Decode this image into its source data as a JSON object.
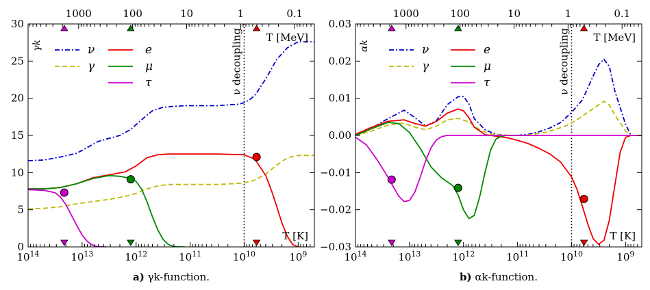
{
  "chart_data": [
    {
      "type": "line",
      "panel_label": "a)",
      "caption": "γk-function.",
      "inside_label": "γk",
      "xlabel": "T [K]",
      "x2label": "T [MeV]",
      "x_scale": "log_reversed",
      "xlim_log10_K": [
        14,
        8.7
      ],
      "x_ticks": [
        {
          "log": 14,
          "label": "10^14"
        },
        {
          "log": 13,
          "label": "10^13"
        },
        {
          "log": 12,
          "label": "10^12"
        },
        {
          "log": 11,
          "label": "10^11"
        },
        {
          "log": 10,
          "label": "10^10"
        },
        {
          "log": 9,
          "label": "10^9"
        }
      ],
      "x2_ticks": [
        {
          "log": 13.0645,
          "label": "1000"
        },
        {
          "log": 12.0645,
          "label": "100"
        },
        {
          "log": 11.0645,
          "label": "10"
        },
        {
          "log": 10.0645,
          "label": "1"
        },
        {
          "log": 9.0645,
          "label": "0.1"
        }
      ],
      "ylim": [
        0,
        30
      ],
      "y_ticks": [
        "0",
        "5",
        "10",
        "15",
        "20",
        "25",
        "30"
      ],
      "y_tick_values": [
        0,
        5,
        10,
        15,
        20,
        25,
        30
      ],
      "decoupling": {
        "log": 10.0,
        "label": "ν decoupling"
      },
      "series": [
        {
          "name": "ν",
          "color": "#0000cc",
          "dash": "dashdot",
          "x_log": [
            14,
            13.7,
            13.4,
            13.1,
            12.9,
            12.7,
            12.5,
            12.3,
            12.1,
            11.9,
            11.7,
            11.5,
            11.3,
            11.1,
            10.9,
            10.7,
            10.5,
            10.3,
            10.1,
            10.0,
            9.9,
            9.8,
            9.6,
            9.4,
            9.2,
            9.0,
            8.7
          ],
          "y": [
            11.6,
            11.7,
            12.1,
            12.6,
            13.4,
            14.2,
            14.6,
            15.0,
            15.8,
            17.1,
            18.3,
            18.8,
            18.9,
            19.0,
            19.0,
            19.0,
            19.0,
            19.1,
            19.2,
            19.4,
            19.8,
            20.4,
            22.6,
            25.2,
            26.8,
            27.6,
            27.6
          ]
        },
        {
          "name": "γ",
          "color": "#bbbb00",
          "dash": "dashed",
          "x_log": [
            14,
            13.7,
            13.4,
            13.1,
            12.8,
            12.5,
            12.2,
            12.0,
            11.8,
            11.6,
            11.4,
            11.2,
            11.0,
            10.8,
            10.5,
            10.2,
            10.0,
            9.8,
            9.6,
            9.4,
            9.2,
            9.0,
            8.7
          ],
          "y": [
            5.1,
            5.2,
            5.4,
            5.8,
            6.1,
            6.4,
            6.8,
            7.2,
            7.8,
            8.2,
            8.4,
            8.4,
            8.4,
            8.4,
            8.4,
            8.5,
            8.6,
            9.0,
            9.8,
            11.0,
            12.0,
            12.3,
            12.3
          ]
        },
        {
          "name": "e",
          "color": "#ee0000",
          "dash": "solid",
          "x_log": [
            14,
            13.7,
            13.4,
            13.1,
            12.8,
            12.5,
            12.2,
            12.0,
            11.8,
            11.6,
            11.4,
            11.2,
            11.0,
            10.5,
            10.0,
            9.8,
            9.6,
            9.5,
            9.4,
            9.3,
            9.2,
            9.1,
            9.0
          ],
          "y": [
            7.8,
            7.8,
            8.0,
            8.5,
            9.3,
            9.7,
            10.1,
            10.9,
            12.0,
            12.4,
            12.5,
            12.5,
            12.5,
            12.5,
            12.4,
            11.8,
            9.6,
            7.7,
            5.5,
            3.2,
            1.4,
            0.3,
            0.0
          ]
        },
        {
          "name": "μ",
          "color": "#008800",
          "dash": "solid",
          "x_log": [
            14,
            13.7,
            13.4,
            13.1,
            12.8,
            12.5,
            12.3,
            12.1,
            12.0,
            11.9,
            11.8,
            11.7,
            11.6,
            11.5,
            11.4,
            11.3,
            11.2,
            11.1
          ],
          "y": [
            7.8,
            7.8,
            8.0,
            8.5,
            9.2,
            9.6,
            9.5,
            9.2,
            8.8,
            7.8,
            6.1,
            4.1,
            2.3,
            1.0,
            0.3,
            0.05,
            0.0,
            0.0
          ]
        },
        {
          "name": "τ",
          "color": "#cc00cc",
          "dash": "solid",
          "x_log": [
            14,
            13.7,
            13.5,
            13.4,
            13.3,
            13.2,
            13.1,
            13.0,
            12.9,
            12.8,
            12.7,
            12.6,
            12.55
          ],
          "y": [
            7.7,
            7.6,
            7.3,
            6.7,
            5.7,
            4.3,
            2.9,
            1.6,
            0.7,
            0.2,
            0.04,
            0.0,
            0.0
          ]
        }
      ],
      "markers": [
        {
          "name": "τ",
          "color": "#cc00cc",
          "x_log": 13.33,
          "y": 7.3
        },
        {
          "name": "μ",
          "color": "#008800",
          "x_log": 12.1,
          "y": 9.1
        },
        {
          "name": "e",
          "color": "#ee0000",
          "x_log": 9.77,
          "y": 12.1
        }
      ]
    },
    {
      "type": "line",
      "panel_label": "b)",
      "caption": "αk-function.",
      "inside_label": "αk",
      "xlabel": "T [K]",
      "x2label": "T [MeV]",
      "x_scale": "log_reversed",
      "xlim_log10_K": [
        14,
        8.7
      ],
      "x_ticks": [
        {
          "log": 14,
          "label": "10^14"
        },
        {
          "log": 13,
          "label": "10^13"
        },
        {
          "log": 12,
          "label": "10^12"
        },
        {
          "log": 11,
          "label": "10^11"
        },
        {
          "log": 10,
          "label": "10^10"
        },
        {
          "log": 9,
          "label": "10^9"
        }
      ],
      "x2_ticks": [
        {
          "log": 13.0645,
          "label": "1000"
        },
        {
          "log": 12.0645,
          "label": "100"
        },
        {
          "log": 11.0645,
          "label": "10"
        },
        {
          "log": 10.0645,
          "label": "1"
        },
        {
          "log": 9.0645,
          "label": "0.1"
        }
      ],
      "ylim": [
        -0.03,
        0.03
      ],
      "y_ticks": [
        "−0.03",
        "−0.02",
        "−0.01",
        "0.00",
        "0.01",
        "0.02",
        "0.03"
      ],
      "y_tick_values": [
        -0.03,
        -0.02,
        -0.01,
        0.0,
        0.01,
        0.02,
        0.03
      ],
      "decoupling": {
        "log": 10.0,
        "label": "ν decoupling"
      },
      "series": [
        {
          "name": "ν",
          "color": "#0000cc",
          "dash": "dashdot",
          "x_log": [
            14,
            13.7,
            13.4,
            13.1,
            12.9,
            12.7,
            12.5,
            12.3,
            12.1,
            12.0,
            11.9,
            11.8,
            11.6,
            11.4,
            11.2,
            11.0,
            10.8,
            10.6,
            10.4,
            10.2,
            10.0,
            9.8,
            9.6,
            9.5,
            9.4,
            9.3,
            9.2,
            9.0,
            8.9
          ],
          "y": [
            0.0003,
            0.002,
            0.0045,
            0.0068,
            0.0048,
            0.0025,
            0.004,
            0.0083,
            0.0104,
            0.0105,
            0.0085,
            0.0045,
            0.0015,
            0.0003,
            0.0,
            0.0,
            0.0003,
            0.001,
            0.002,
            0.0035,
            0.0062,
            0.0095,
            0.016,
            0.019,
            0.0205,
            0.0185,
            0.012,
            0.003,
            0.0
          ]
        },
        {
          "name": "γ",
          "color": "#bbbb00",
          "dash": "dashed",
          "x_log": [
            14,
            13.7,
            13.4,
            13.1,
            12.9,
            12.7,
            12.5,
            12.3,
            12.1,
            11.9,
            11.7,
            11.5,
            11.3,
            11.1,
            10.9,
            10.7,
            10.5,
            10.3,
            10.1,
            9.9,
            9.7,
            9.5,
            9.4,
            9.3,
            9.2,
            9.0,
            8.9
          ],
          "y": [
            0.0,
            0.0012,
            0.0028,
            0.0033,
            0.0022,
            0.0015,
            0.0025,
            0.0042,
            0.0046,
            0.0036,
            0.0015,
            0.0004,
            0.0001,
            0.0,
            0.0,
            0.0003,
            0.0008,
            0.0016,
            0.0026,
            0.0042,
            0.0062,
            0.0082,
            0.0092,
            0.0082,
            0.0055,
            0.0012,
            0.0
          ]
        },
        {
          "name": "e",
          "color": "#ee0000",
          "dash": "solid",
          "x_log": [
            14,
            13.7,
            13.4,
            13.1,
            12.9,
            12.7,
            12.5,
            12.3,
            12.1,
            12.0,
            11.9,
            11.8,
            11.6,
            11.4,
            11.2,
            11.0,
            10.8,
            10.6,
            10.4,
            10.2,
            10.0,
            9.9,
            9.8,
            9.7,
            9.6,
            9.5,
            9.4,
            9.3,
            9.2,
            9.1,
            9.0,
            8.9,
            8.7
          ],
          "y": [
            0.0003,
            0.0022,
            0.0038,
            0.0042,
            0.0032,
            0.0025,
            0.0038,
            0.006,
            0.0071,
            0.0066,
            0.0048,
            0.0022,
            0.0002,
            -0.0002,
            -0.0006,
            -0.0013,
            -0.0022,
            -0.0035,
            -0.005,
            -0.0072,
            -0.0112,
            -0.0145,
            -0.019,
            -0.0238,
            -0.0278,
            -0.0293,
            -0.0282,
            -0.0228,
            -0.0135,
            -0.0045,
            -0.0005,
            0.0,
            0.0
          ]
        },
        {
          "name": "μ",
          "color": "#008800",
          "dash": "solid",
          "x_log": [
            14,
            13.7,
            13.4,
            13.2,
            13.0,
            12.8,
            12.6,
            12.4,
            12.2,
            12.1,
            12.0,
            11.9,
            11.8,
            11.7,
            11.6,
            11.5,
            11.4,
            11.3,
            11.2,
            11.1,
            11.0
          ],
          "y": [
            0.0,
            0.0018,
            0.0035,
            0.0032,
            0.0008,
            -0.0035,
            -0.0085,
            -0.0115,
            -0.0135,
            -0.016,
            -0.02,
            -0.0224,
            -0.0215,
            -0.0165,
            -0.0098,
            -0.004,
            -0.001,
            -0.0002,
            0.0,
            0.0,
            0.0
          ]
        },
        {
          "name": "τ",
          "color": "#cc00cc",
          "dash": "solid",
          "x_log": [
            14,
            13.8,
            13.6,
            13.4,
            13.3,
            13.2,
            13.1,
            13.0,
            12.9,
            12.8,
            12.7,
            12.6,
            12.5,
            12.4,
            12.3,
            12.2,
            12.0,
            11.0,
            10.0,
            9.0,
            8.7
          ],
          "y": [
            -0.0005,
            -0.0025,
            -0.0065,
            -0.0112,
            -0.0138,
            -0.0163,
            -0.0178,
            -0.0175,
            -0.0152,
            -0.0112,
            -0.0068,
            -0.0033,
            -0.0012,
            -0.0003,
            0.0,
            0.0,
            0.0,
            0.0,
            0.0,
            0.0,
            0.0
          ]
        }
      ],
      "markers": [
        {
          "name": "τ",
          "color": "#cc00cc",
          "x_log": 13.33,
          "y": -0.0119
        },
        {
          "name": "μ",
          "color": "#008800",
          "x_log": 12.1,
          "y": -0.0141
        },
        {
          "name": "e",
          "color": "#ee0000",
          "x_log": 9.77,
          "y": -0.0171
        }
      ]
    }
  ]
}
